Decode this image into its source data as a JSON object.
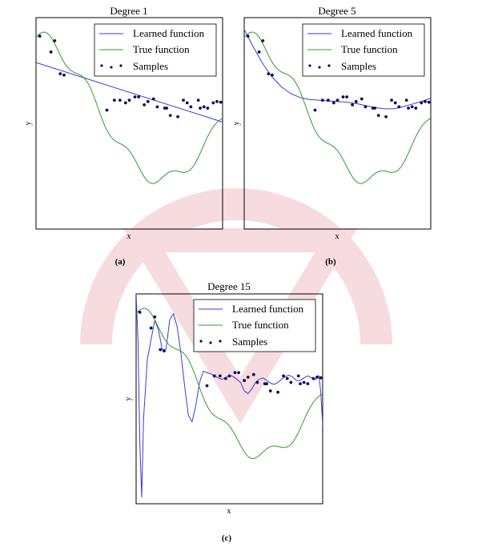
{
  "colors": {
    "learned": "#3b3bd6",
    "true": "#2e9b2e",
    "samples": "#0c0c5e",
    "watermark": "#e89aa4"
  },
  "chart_data": [
    {
      "type": "line",
      "panel_label": "(a)",
      "title": "Degree 1",
      "xlabel": "x",
      "ylabel": "y",
      "xlim": [
        0,
        1
      ],
      "ylim": [
        -1.9,
        1.3
      ],
      "legend": {
        "placement": "top-right",
        "entries": [
          "Learned function",
          "True function",
          "Samples"
        ]
      },
      "series": [
        {
          "name": "Learned function",
          "kind": "polyline",
          "x": [
            0,
            1
          ],
          "y": [
            0.62,
            -0.28
          ]
        },
        {
          "name": "True function",
          "kind": "function"
        },
        {
          "name": "Samples",
          "kind": "scatter",
          "x": [
            0.02,
            0.08,
            0.1,
            0.13,
            0.15,
            0.38,
            0.42,
            0.45,
            0.48,
            0.5,
            0.53,
            0.55,
            0.58,
            0.6,
            0.63,
            0.65,
            0.69,
            0.7,
            0.72,
            0.76,
            0.79,
            0.81,
            0.83,
            0.87,
            0.88,
            0.9,
            0.92,
            0.95,
            0.97,
            0.99
          ],
          "y": [
            1.02,
            0.78,
            0.95,
            0.45,
            0.43,
            -0.1,
            0.05,
            0.05,
            0.01,
            0.05,
            0.1,
            0.1,
            -0.02,
            0.03,
            0.07,
            -0.05,
            -0.07,
            -0.07,
            -0.18,
            -0.2,
            0.05,
            0.01,
            -0.05,
            0.05,
            -0.07,
            -0.05,
            -0.07,
            0.01,
            0.03,
            0.02
          ]
        }
      ]
    },
    {
      "type": "line",
      "panel_label": "(b)",
      "title": "Degree 5",
      "xlabel": "x",
      "ylabel": "y",
      "xlim": [
        0,
        1
      ],
      "ylim": [
        -1.9,
        1.3
      ],
      "legend": {
        "placement": "top-right",
        "entries": [
          "Learned function",
          "True function",
          "Samples"
        ]
      },
      "series": [
        {
          "name": "Learned function",
          "kind": "polyline",
          "x": [
            0,
            0.05,
            0.1,
            0.15,
            0.2,
            0.25,
            0.3,
            0.35,
            0.4,
            0.45,
            0.5,
            0.55,
            0.6,
            0.65,
            0.7,
            0.75,
            0.8,
            0.85,
            0.9,
            0.95,
            1.0
          ],
          "y": [
            1.12,
            0.85,
            0.6,
            0.4,
            0.25,
            0.15,
            0.09,
            0.06,
            0.05,
            0.04,
            0.03,
            0.02,
            0.0,
            -0.03,
            -0.06,
            -0.08,
            -0.08,
            -0.05,
            -0.01,
            0.03,
            0.08
          ]
        },
        {
          "name": "True function",
          "kind": "function"
        },
        {
          "name": "Samples",
          "kind": "scatter",
          "x": [
            0.02,
            0.08,
            0.1,
            0.13,
            0.15,
            0.38,
            0.42,
            0.45,
            0.48,
            0.5,
            0.53,
            0.55,
            0.58,
            0.6,
            0.63,
            0.65,
            0.69,
            0.7,
            0.72,
            0.76,
            0.79,
            0.81,
            0.83,
            0.87,
            0.88,
            0.9,
            0.92,
            0.95,
            0.97,
            0.99
          ],
          "y": [
            1.02,
            0.78,
            0.95,
            0.45,
            0.43,
            -0.1,
            0.05,
            0.05,
            0.01,
            0.05,
            0.1,
            0.1,
            -0.02,
            0.03,
            0.07,
            -0.05,
            -0.07,
            -0.07,
            -0.18,
            -0.2,
            0.05,
            0.01,
            -0.05,
            0.05,
            -0.07,
            -0.05,
            -0.07,
            0.01,
            0.03,
            0.02
          ]
        }
      ]
    },
    {
      "type": "line",
      "panel_label": "(c)",
      "title": "Degree 15",
      "xlabel": "x",
      "ylabel": "y",
      "xlim": [
        0,
        1
      ],
      "ylim": [
        -1.9,
        1.3
      ],
      "legend": {
        "placement": "top-right",
        "entries": [
          "Learned function",
          "True function",
          "Samples"
        ]
      },
      "series": [
        {
          "name": "Learned function",
          "kind": "polyline",
          "x": [
            0,
            0.01,
            0.02,
            0.03,
            0.04,
            0.06,
            0.08,
            0.1,
            0.12,
            0.14,
            0.16,
            0.18,
            0.2,
            0.22,
            0.24,
            0.26,
            0.28,
            0.3,
            0.32,
            0.34,
            0.36,
            0.38,
            0.4,
            0.42,
            0.44,
            0.46,
            0.48,
            0.5,
            0.52,
            0.54,
            0.56,
            0.58,
            0.6,
            0.62,
            0.64,
            0.66,
            0.68,
            0.7,
            0.72,
            0.74,
            0.76,
            0.78,
            0.8,
            0.82,
            0.84,
            0.86,
            0.88,
            0.9,
            0.92,
            0.94,
            0.96,
            0.97,
            0.98,
            0.99,
            1.0
          ],
          "y": [
            1.3,
            0.6,
            -1.0,
            -1.8,
            -0.6,
            0.3,
            0.6,
            0.9,
            0.75,
            0.45,
            0.45,
            0.9,
            1.0,
            0.8,
            0.4,
            -0.1,
            -0.55,
            -0.65,
            -0.4,
            -0.05,
            0.12,
            0.1,
            0.08,
            0.05,
            0.02,
            0.0,
            0.02,
            0.06,
            0.04,
            0.0,
            -0.05,
            -0.18,
            -0.22,
            -0.15,
            -0.05,
            0.0,
            0.02,
            -0.02,
            -0.06,
            -0.08,
            -0.05,
            0.0,
            0.04,
            0.06,
            0.03,
            -0.02,
            -0.02,
            0.02,
            0.05,
            0.02,
            -0.01,
            0.05,
            0.05,
            -0.2,
            -0.7
          ]
        },
        {
          "name": "True function",
          "kind": "function"
        },
        {
          "name": "Samples",
          "kind": "scatter",
          "x": [
            0.02,
            0.08,
            0.1,
            0.13,
            0.15,
            0.38,
            0.42,
            0.45,
            0.48,
            0.5,
            0.53,
            0.55,
            0.58,
            0.6,
            0.63,
            0.65,
            0.69,
            0.7,
            0.72,
            0.76,
            0.79,
            0.81,
            0.83,
            0.87,
            0.88,
            0.9,
            0.92,
            0.95,
            0.97,
            0.99
          ],
          "y": [
            1.02,
            0.78,
            0.95,
            0.45,
            0.43,
            -0.1,
            0.05,
            0.05,
            0.01,
            0.05,
            0.1,
            0.1,
            -0.02,
            0.03,
            0.07,
            -0.05,
            -0.07,
            -0.07,
            -0.18,
            -0.2,
            0.05,
            0.01,
            -0.05,
            0.05,
            -0.07,
            -0.05,
            -0.07,
            0.01,
            0.03,
            0.02
          ]
        }
      ]
    }
  ]
}
